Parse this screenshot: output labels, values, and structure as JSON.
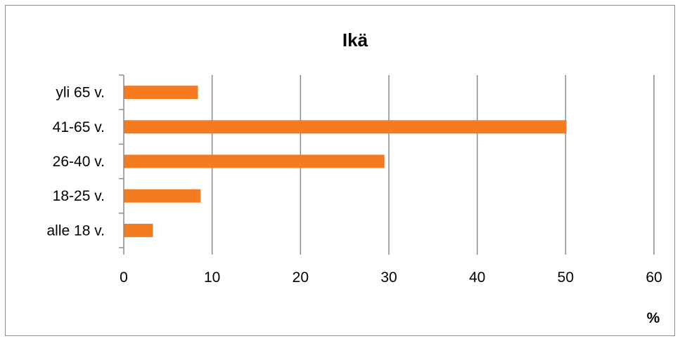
{
  "chart_data": {
    "type": "bar",
    "orientation": "horizontal",
    "title": "Ikä",
    "xlabel": "%",
    "ylabel": "",
    "categories": [
      "alle 18 v.",
      "18-25 v.",
      "26-40 v.",
      "41-65 v.",
      "yli 65 v."
    ],
    "values": [
      3.3,
      8.7,
      29.5,
      50.1,
      8.4
    ],
    "xlim": [
      0,
      60
    ],
    "xticks": [
      0,
      10,
      20,
      30,
      40,
      50,
      60
    ],
    "grid": "vertical",
    "legend": "none",
    "bar_color": "#F47B20"
  }
}
